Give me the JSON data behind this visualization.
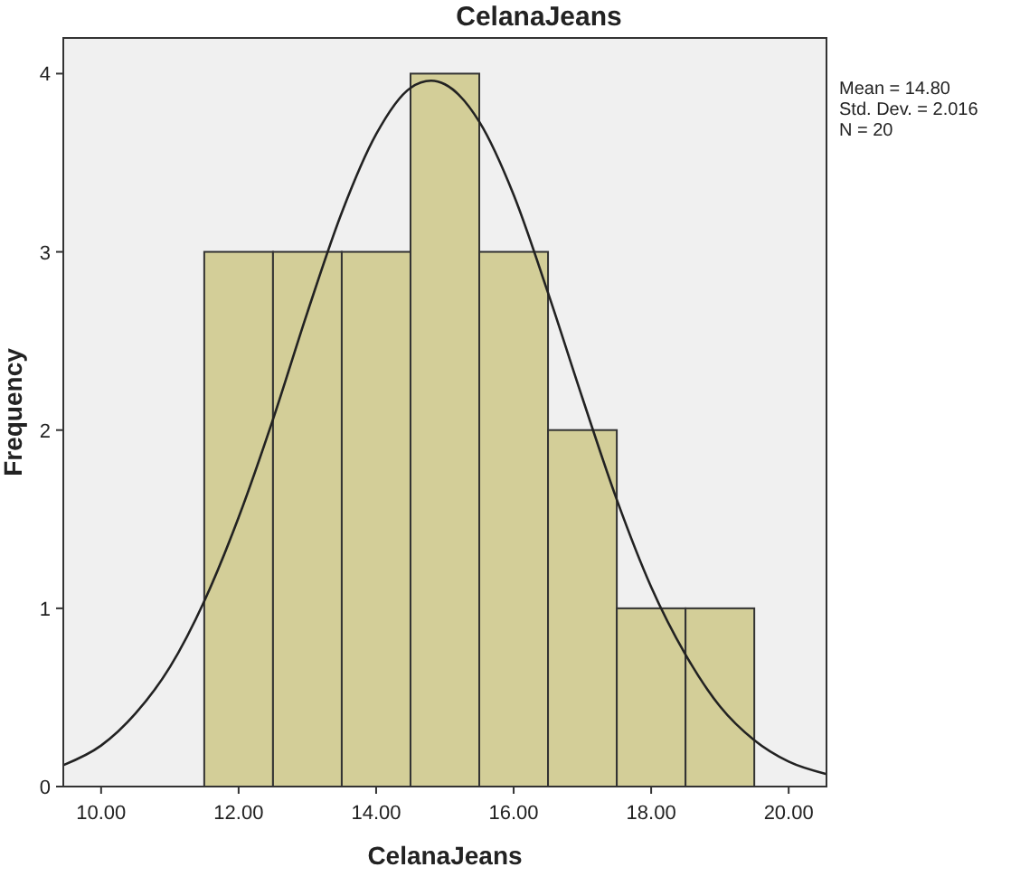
{
  "chart_data": {
    "type": "histogram",
    "title": "CelanaJeans",
    "xlabel": "CelanaJeans",
    "ylabel": "Frequency",
    "bins": [
      11.5,
      12.5,
      13.5,
      14.5,
      15.5,
      16.5,
      17.5,
      18.5,
      19.5
    ],
    "values": [
      3,
      3,
      3,
      4,
      3,
      2,
      1,
      1
    ],
    "color": "#d3ce98",
    "series": [
      {
        "type": "line",
        "color": "#222222",
        "x": [
          9.45,
          10,
          10.5,
          11,
          11.5,
          12,
          12.5,
          13,
          13.5,
          14,
          14.5,
          14.8,
          15,
          15.5,
          16,
          16.5,
          17,
          17.5,
          18,
          18.5,
          19,
          19.5,
          20,
          20.55
        ],
        "values": [
          0.12,
          0.23,
          0.41,
          0.67,
          1.04,
          1.51,
          2.06,
          2.66,
          3.22,
          3.66,
          3.92,
          3.96,
          3.94,
          3.73,
          3.32,
          2.77,
          2.18,
          1.61,
          1.12,
          0.74,
          0.45,
          0.26,
          0.14,
          0.07
        ]
      }
    ],
    "xlim": [
      9.45,
      20.55
    ],
    "xticks": [
      {
        "value": 10,
        "label": "10.00"
      },
      {
        "value": 12,
        "label": "12.00"
      },
      {
        "value": 14,
        "label": "14.00"
      },
      {
        "value": 16,
        "label": "16.00"
      },
      {
        "value": 18,
        "label": "18.00"
      },
      {
        "value": 20,
        "label": "20.00"
      }
    ],
    "ylim": [
      0,
      4.2
    ],
    "yticks": [
      0,
      1,
      2,
      3,
      4
    ],
    "annotations": [
      "Mean = 14.80",
      "Std. Dev. = 2.016",
      "N = 20"
    ],
    "grid": false
  }
}
